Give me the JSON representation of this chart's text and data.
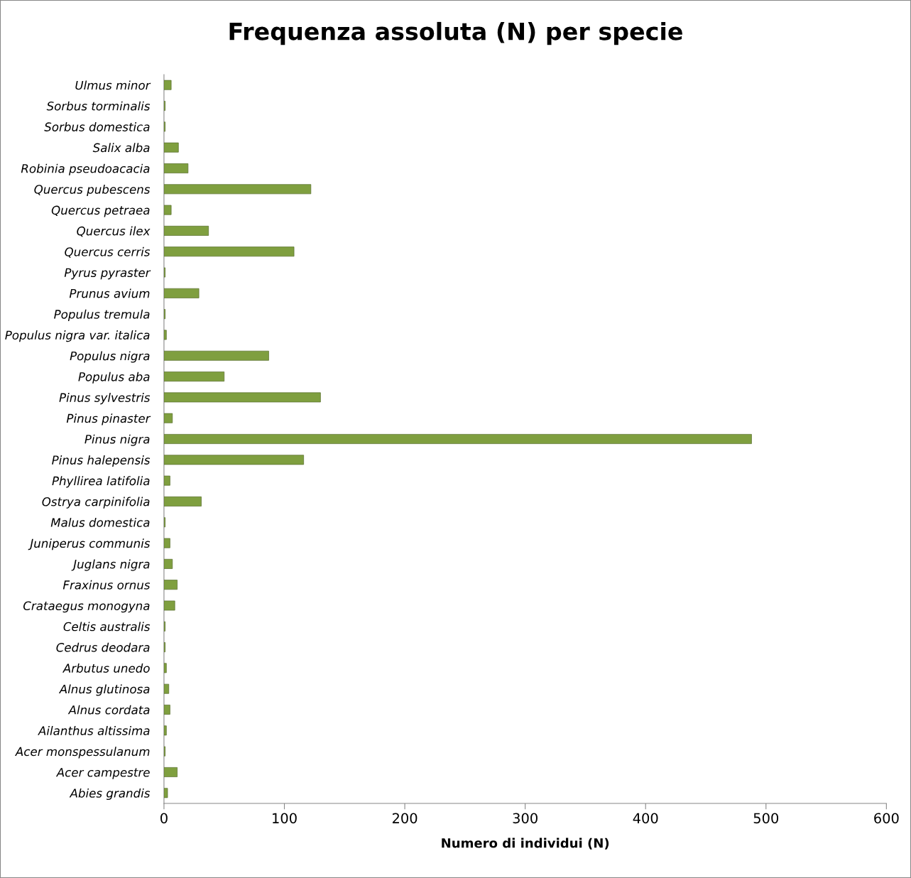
{
  "chart_data": {
    "type": "bar",
    "orientation": "horizontal",
    "title": "Frequenza assoluta (N) per specie",
    "xlabel": "Numero di individui (N)",
    "categories": [
      "Ulmus minor",
      "Sorbus torminalis",
      "Sorbus domestica",
      "Salix alba",
      "Robinia pseudoacacia",
      "Quercus pubescens",
      "Quercus petraea",
      "Quercus ilex",
      "Quercus cerris",
      "Pyrus pyraster",
      "Prunus avium",
      "Populus tremula",
      "Populus nigra var. italica",
      "Populus nigra",
      "Populus aba",
      "Pinus sylvestris",
      "Pinus pinaster",
      "Pinus nigra",
      "Pinus halepensis",
      "Phyllirea latifolia",
      "Ostrya carpinifolia",
      "Malus domestica",
      "Juniperus communis",
      "Juglans nigra",
      "Fraxinus ornus",
      "Crataegus monogyna",
      "Celtis australis",
      "Cedrus deodara",
      "Arbutus unedo",
      "Alnus glutinosa",
      "Alnus cordata",
      "Ailanthus altissima",
      "Acer monspessulanum",
      "Acer campestre",
      "Abies grandis"
    ],
    "values": [
      6,
      1,
      1,
      12,
      20,
      122,
      6,
      37,
      108,
      1,
      29,
      1,
      2,
      87,
      50,
      130,
      7,
      488,
      116,
      5,
      31,
      1,
      5,
      7,
      11,
      9,
      1,
      1,
      2,
      4,
      5,
      2,
      1,
      11,
      3
    ],
    "color": "#7f9f3f",
    "xlim": [
      0,
      600
    ],
    "xticks": [
      0,
      100,
      200,
      300,
      400,
      500,
      600
    ],
    "grid": false,
    "legend": false
  }
}
